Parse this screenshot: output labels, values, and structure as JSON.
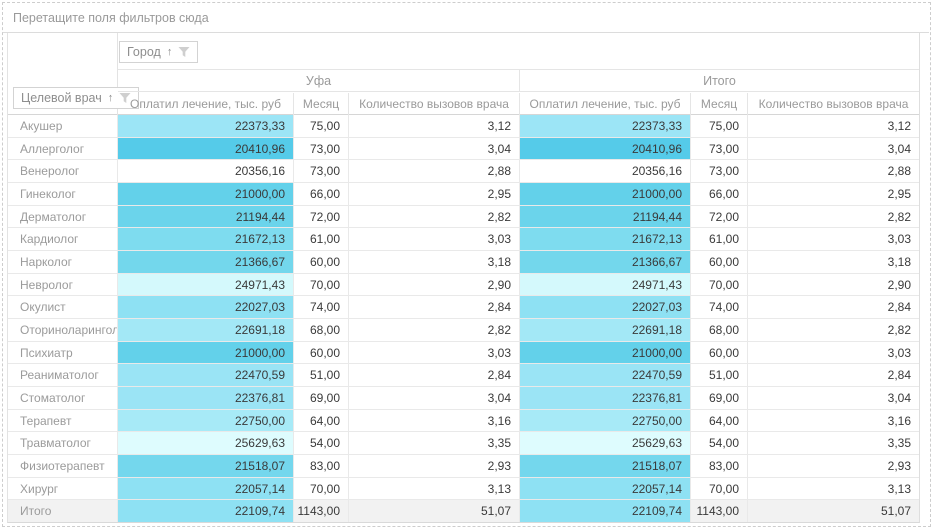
{
  "filter_area": {
    "hint": "Перетащите поля фильтров сюда"
  },
  "fields": {
    "column": {
      "label": "Город",
      "sort": "↑"
    },
    "row": {
      "label": "Целевой врач",
      "sort": "↑"
    }
  },
  "groups": [
    {
      "label": "Уфа"
    },
    {
      "label": "Итого"
    }
  ],
  "measures": [
    "Оплатил лечение, тыс. руб",
    "Месяц",
    "Количество вызовов врача"
  ],
  "icons": {
    "sort_ascending": "↑",
    "filter": "funnel-icon"
  },
  "colors": {
    "scale_dark": "#55cbe9",
    "scale_light": "#defcfe",
    "total_row_bg": "#f2f2f2",
    "border": "#e5e5e5",
    "header_text": "#9a9a9a",
    "value_text": "#3a3a3a"
  },
  "rows": [
    {
      "label": "Акушер",
      "paid": "22373,33",
      "month": "75,00",
      "calls": "3,12",
      "color": "#9ce5f6"
    },
    {
      "label": "Аллерголог",
      "paid": "20410,96",
      "month": "73,00",
      "calls": "3,04",
      "color": "#55cbe9"
    },
    {
      "label": "Венеролог",
      "paid": "20356,16",
      "month": "73,00",
      "calls": "2,88",
      "color": ""
    },
    {
      "label": "Гинеколог",
      "paid": "21000,00",
      "month": "66,00",
      "calls": "2,95",
      "color": "#63d1ea"
    },
    {
      "label": "Дерматолог",
      "paid": "21194,44",
      "month": "72,00",
      "calls": "2,82",
      "color": "#6bd4eb"
    },
    {
      "label": "Кардиолог",
      "paid": "21672,13",
      "month": "61,00",
      "calls": "3,03",
      "color": "#7edcef"
    },
    {
      "label": "Нарколог",
      "paid": "21366,67",
      "month": "60,00",
      "calls": "3,18",
      "color": "#73d7ec"
    },
    {
      "label": "Невролог",
      "paid": "24971,43",
      "month": "70,00",
      "calls": "2,90",
      "color": "#d4f9fc"
    },
    {
      "label": "Окулист",
      "paid": "22027,03",
      "month": "74,00",
      "calls": "2,84",
      "color": "#8ee1f3"
    },
    {
      "label": "Оториноларинголог",
      "paid": "22691,18",
      "month": "68,00",
      "calls": "2,82",
      "color": "#a3e8f6"
    },
    {
      "label": "Психиатр",
      "paid": "21000,00",
      "month": "60,00",
      "calls": "3,03",
      "color": "#63d1ea"
    },
    {
      "label": "Реаниматолог",
      "paid": "22470,59",
      "month": "51,00",
      "calls": "2,84",
      "color": "#9ae4f5"
    },
    {
      "label": "Стоматолог",
      "paid": "22376,81",
      "month": "69,00",
      "calls": "3,04",
      "color": "#9be4f5"
    },
    {
      "label": "Терапевт",
      "paid": "22750,00",
      "month": "64,00",
      "calls": "3,16",
      "color": "#a7eaf7"
    },
    {
      "label": "Травматолог",
      "paid": "25629,63",
      "month": "54,00",
      "calls": "3,35",
      "color": "#defcfe"
    },
    {
      "label": "Физиотерапевт",
      "paid": "21518,07",
      "month": "83,00",
      "calls": "2,93",
      "color": "#74d7ed"
    },
    {
      "label": "Хирург",
      "paid": "22057,14",
      "month": "70,00",
      "calls": "3,13",
      "color": "#8ee1f3"
    },
    {
      "label": "Итого",
      "paid": "22109,74",
      "month": "1143,00",
      "calls": "51,07",
      "color": "#8ee1f3",
      "total": true
    }
  ]
}
